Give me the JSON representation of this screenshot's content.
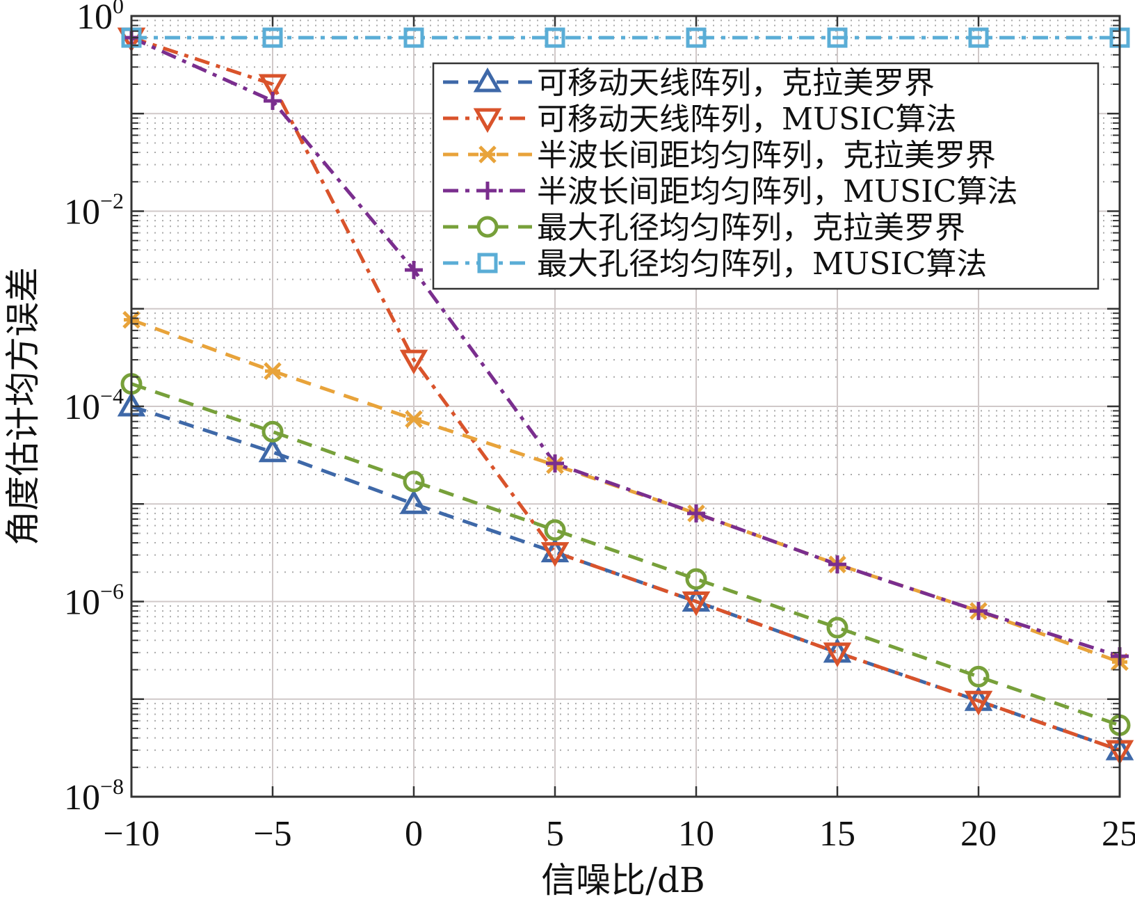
{
  "chart_data": {
    "type": "line",
    "title": "",
    "xlabel": "信噪比/dB",
    "ylabel": "角度估计均方误差",
    "yscale": "log",
    "xlim": [
      -10,
      25
    ],
    "ylim": [
      1e-08,
      1
    ],
    "x": [
      -10,
      -5,
      0,
      5,
      10,
      15,
      20,
      25
    ],
    "xticks": [
      "−10",
      "−5",
      "0",
      "5",
      "10",
      "15",
      "20",
      "25"
    ],
    "yticks": [
      {
        "base": "10",
        "exp": "0",
        "value": 1
      },
      {
        "base": "10",
        "exp": "−2",
        "value": 0.01
      },
      {
        "base": "10",
        "exp": "−4",
        "value": 0.0001
      },
      {
        "base": "10",
        "exp": "−6",
        "value": 1e-06
      },
      {
        "base": "10",
        "exp": "−8",
        "value": 1e-08
      }
    ],
    "grid": true,
    "minor_grid": true,
    "legend_position": "upper right",
    "series": [
      {
        "name": "可移动天线阵列，克拉美罗界",
        "color": "#3E68A8",
        "marker": "triangle-up",
        "dash": "dashed",
        "values": [
          0.0001,
          3.4e-05,
          1e-05,
          3.2e-06,
          1e-06,
          3e-07,
          9.6e-08,
          3e-08
        ]
      },
      {
        "name": "可移动天线阵列，MUSIC算法",
        "color": "#D9532B",
        "marker": "triangle-down",
        "dash": "dashdot",
        "values": [
          0.6,
          0.2,
          0.0003,
          3.2e-06,
          1e-06,
          3e-07,
          9.6e-08,
          3e-08
        ]
      },
      {
        "name": "半波长间距均匀阵列，克拉美罗界",
        "color": "#E8A33A",
        "marker": "x-star",
        "dash": "dashed",
        "values": [
          0.00077,
          0.00023,
          7.4e-05,
          2.5e-05,
          8e-06,
          2.4e-06,
          8e-07,
          2.4e-07
        ]
      },
      {
        "name": "半波长间距均匀阵列，MUSIC算法",
        "color": "#7A2E8E",
        "marker": "plus",
        "dash": "dashdot",
        "values": [
          0.6,
          0.135,
          0.0025,
          2.6e-05,
          8e-06,
          2.4e-06,
          8e-07,
          2.75e-07
        ]
      },
      {
        "name": "最大孔径均匀阵列，克拉美罗界",
        "color": "#77A03A",
        "marker": "circle",
        "dash": "dashed",
        "values": [
          0.00017,
          5.5e-05,
          1.7e-05,
          5.4e-06,
          1.7e-06,
          5.4e-07,
          1.7e-07,
          5.4e-08
        ]
      },
      {
        "name": "最大孔径均匀阵列，MUSIC算法",
        "color": "#5AADD6",
        "marker": "square",
        "dash": "dashdot",
        "values": [
          0.6,
          0.6,
          0.6,
          0.6,
          0.6,
          0.6,
          0.6,
          0.6
        ]
      }
    ]
  }
}
